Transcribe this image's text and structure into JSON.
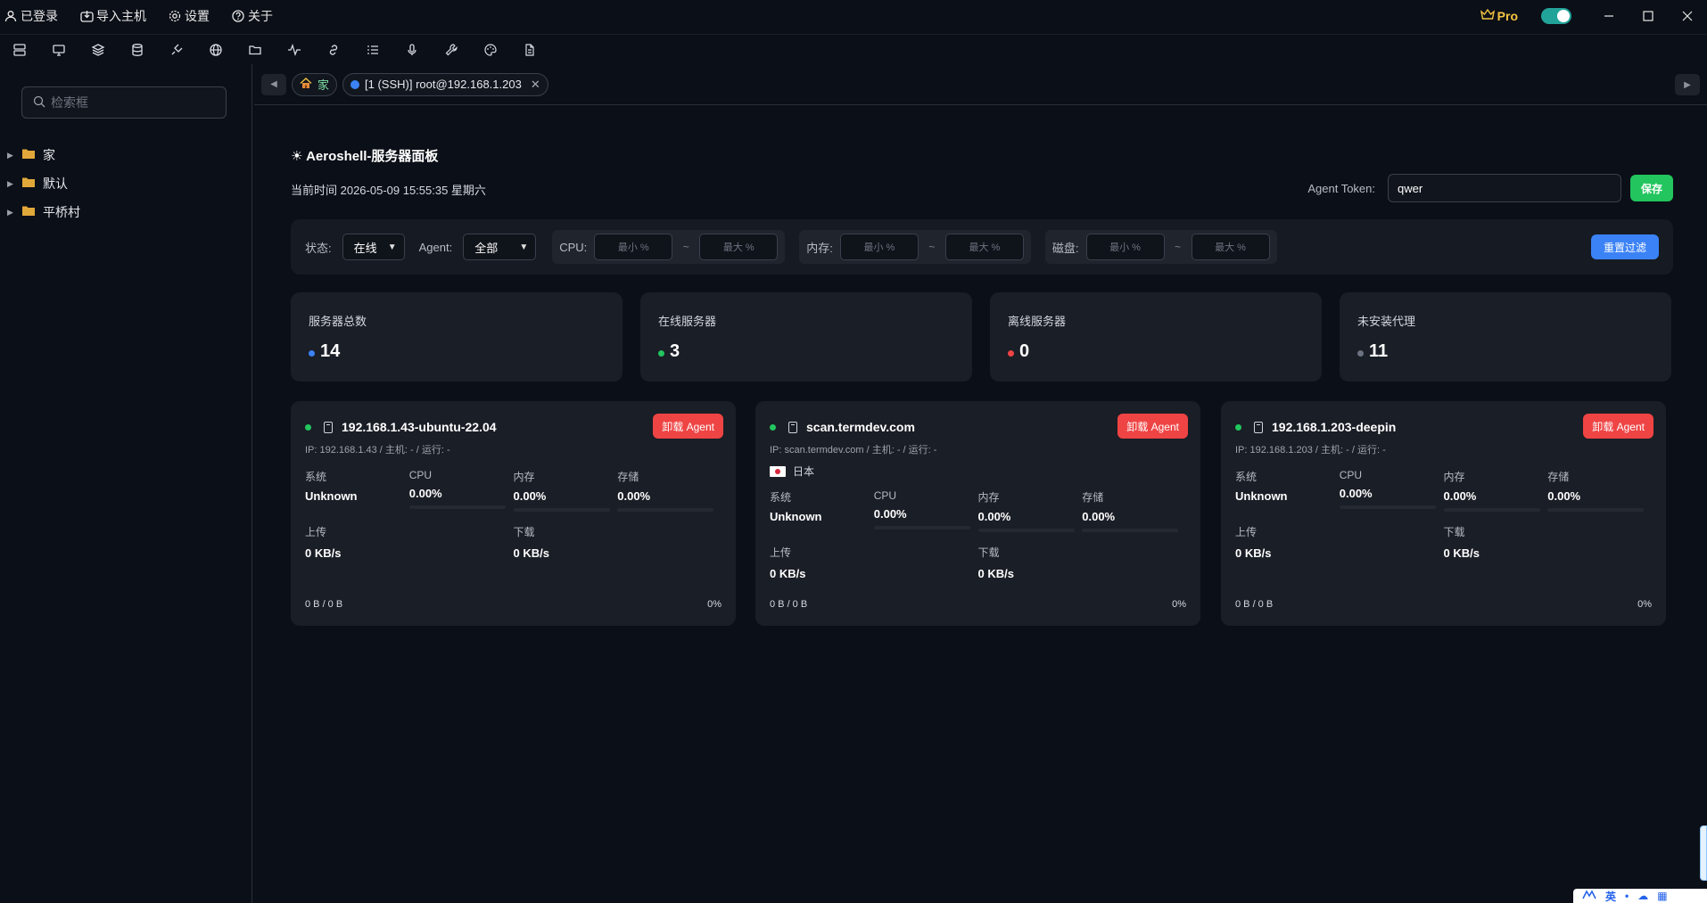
{
  "titlebar": {
    "menu": [
      {
        "icon": "user-icon",
        "label": "已登录"
      },
      {
        "icon": "import-icon",
        "label": "导入主机"
      },
      {
        "icon": "gear-icon",
        "label": "设置"
      },
      {
        "icon": "help-icon",
        "label": "关于"
      }
    ],
    "pro_label": "Pro",
    "toggle_on": true
  },
  "toolbar": {
    "icons": [
      "server-list-icon",
      "monitor-icon",
      "layers-icon",
      "database-icon",
      "plug-icon",
      "globe-icon",
      "folder-icon",
      "pulse-icon",
      "link-icon",
      "list-icon",
      "microphone-icon",
      "wrench-icon",
      "palette-icon",
      "document-icon"
    ]
  },
  "sidebar": {
    "search_placeholder": "检索框",
    "tree": [
      {
        "label": "家"
      },
      {
        "label": "默认"
      },
      {
        "label": "平桥村"
      }
    ]
  },
  "tabs": {
    "home_label": "家",
    "items": [
      {
        "label": "[1 (SSH)] root@192.168.1.203"
      }
    ]
  },
  "panel": {
    "title": "Aeroshell-服务器面板",
    "current_time": "当前时间 2026-05-09 15:55:35 星期六",
    "token_label": "Agent Token:",
    "token_value": "qwer",
    "save_label": "保存"
  },
  "filters": {
    "status_label": "状态:",
    "status_value": "在线",
    "agent_label": "Agent:",
    "agent_value": "全部",
    "cpu_label": "CPU:",
    "mem_label": "内存:",
    "disk_label": "磁盘:",
    "min_placeholder": "最小 %",
    "max_placeholder": "最大 %",
    "tilde": "~",
    "reset_label": "重置过滤"
  },
  "stats": [
    {
      "label": "服务器总数",
      "value": "14",
      "color": "#3b82f6"
    },
    {
      "label": "在线服务器",
      "value": "3",
      "color": "#22c55e"
    },
    {
      "label": "离线服务器",
      "value": "0",
      "color": "#ef4444"
    },
    {
      "label": "未安装代理",
      "value": "11",
      "color": "#6b7280"
    }
  ],
  "servers": [
    {
      "name": "192.168.1.43-ubuntu-22.04",
      "ip_line": "IP: 192.168.1.43 / 主机: - / 运行: -",
      "country": "",
      "uninstall_label": "卸载 Agent",
      "sys_label": "系统",
      "sys_value": "Unknown",
      "cpu_label": "CPU",
      "cpu_value": "0.00%",
      "mem_label": "内存",
      "mem_value": "0.00%",
      "disk_label": "存储",
      "disk_value": "0.00%",
      "up_label": "上传",
      "up_value": "0 KB/s",
      "down_label": "下载",
      "down_value": "0 KB/s",
      "traffic": "0 B / 0 B",
      "percent": "0%"
    },
    {
      "name": "scan.termdev.com",
      "ip_line": "IP: scan.termdev.com / 主机: - / 运行: -",
      "country": "日本",
      "uninstall_label": "卸载 Agent",
      "sys_label": "系统",
      "sys_value": "Unknown",
      "cpu_label": "CPU",
      "cpu_value": "0.00%",
      "mem_label": "内存",
      "mem_value": "0.00%",
      "disk_label": "存储",
      "disk_value": "0.00%",
      "up_label": "上传",
      "up_value": "0 KB/s",
      "down_label": "下载",
      "down_value": "0 KB/s",
      "traffic": "0 B / 0 B",
      "percent": "0%"
    },
    {
      "name": "192.168.1.203-deepin",
      "ip_line": "IP: 192.168.1.203 / 主机: - / 运行: -",
      "country": "",
      "uninstall_label": "卸载 Agent",
      "sys_label": "系统",
      "sys_value": "Unknown",
      "cpu_label": "CPU",
      "cpu_value": "0.00%",
      "mem_label": "内存",
      "mem_value": "0.00%",
      "disk_label": "存储",
      "disk_value": "0.00%",
      "up_label": "上传",
      "up_value": "0 KB/s",
      "down_label": "下载",
      "down_value": "0 KB/s",
      "traffic": "0 B / 0 B",
      "percent": "0%"
    }
  ],
  "ime": {
    "lang": "英"
  }
}
